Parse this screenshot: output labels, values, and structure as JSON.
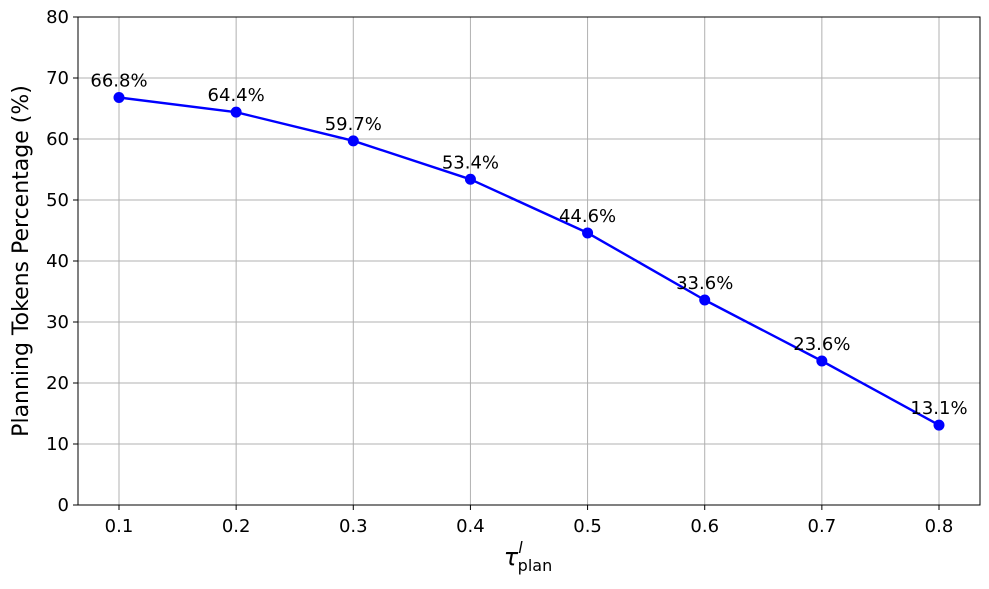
{
  "chart_data": {
    "type": "line",
    "x": [
      0.1,
      0.2,
      0.3,
      0.4,
      0.5,
      0.6,
      0.7,
      0.8
    ],
    "series": [
      {
        "values": [
          66.8,
          64.4,
          59.7,
          53.4,
          44.6,
          33.6,
          23.6,
          13.1
        ],
        "data_labels": [
          "66.8%",
          "64.4%",
          "59.7%",
          "53.4%",
          "44.6%",
          "33.6%",
          "23.6%",
          "13.1%"
        ]
      }
    ],
    "ylabel": "Planning Tokens Percentage (%)",
    "xlabel": {
      "symbol": "τ",
      "superscript": "l",
      "subscript": "plan"
    },
    "xticks": [
      "0.1",
      "0.2",
      "0.3",
      "0.4",
      "0.5",
      "0.6",
      "0.7",
      "0.8"
    ],
    "yticks": [
      "0",
      "10",
      "20",
      "30",
      "40",
      "50",
      "60",
      "70",
      "80"
    ],
    "xlim": [
      0.065,
      0.835
    ],
    "ylim": [
      0,
      80
    ],
    "grid": true,
    "line_color": "#0000ff",
    "grid_color": "#b0b0b0"
  }
}
